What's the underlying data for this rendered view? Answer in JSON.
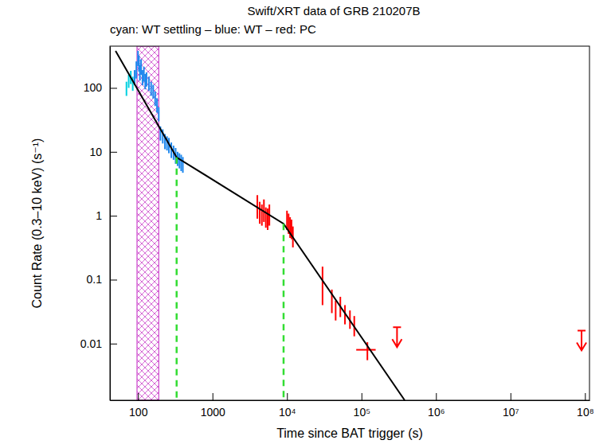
{
  "chart_data": {
    "type": "scatter",
    "title": "Swift/XRT data of GRB 210207B",
    "subtitle": "cyan: WT settling – blue: WT – red: PC",
    "x_label": "Time since BAT trigger (s)",
    "y_label": "Count Rate (0.3–10 keV) (s⁻¹)",
    "log": true,
    "grid": false,
    "xlim": [
      42,
      115000000
    ],
    "ylim": [
      0.0013,
      450
    ],
    "xticks": [
      100,
      1000,
      {
        "value": 10000,
        "label": "10⁴"
      },
      {
        "value": 100000,
        "label": "10⁵"
      },
      {
        "value": 1000000,
        "label": "10⁶"
      },
      {
        "value": 10000000,
        "label": "10⁷"
      },
      {
        "value": 100000000,
        "label": "10⁸"
      }
    ],
    "yticks": [
      0.01,
      0.1,
      1,
      10,
      100
    ],
    "series": [
      {
        "name": "WT settling",
        "color": "#00d0e0",
        "marker": "errorbar",
        "x": [
          70,
          75,
          80,
          85
        ],
        "values": [
          100,
          130,
          150,
          120
        ],
        "errors": [
          25,
          30,
          35,
          30
        ]
      },
      {
        "name": "WT",
        "color": "#1e88ee",
        "marker": "errorbar",
        "x": [
          90,
          95,
          100,
          103,
          106,
          110,
          115,
          120,
          125,
          130,
          140,
          150,
          160,
          170,
          180,
          190,
          200,
          215,
          230,
          245,
          260,
          280,
          300,
          320,
          340,
          360,
          380,
          400
        ],
        "values": [
          150,
          200,
          300,
          250,
          180,
          220,
          150,
          170,
          130,
          140,
          120,
          100,
          90,
          70,
          55,
          40,
          20,
          18,
          15,
          14,
          13,
          11,
          10,
          9,
          8,
          7.5,
          7,
          6.5
        ],
        "errors": [
          40,
          60,
          80,
          70,
          50,
          60,
          40,
          45,
          35,
          35,
          30,
          25,
          22,
          18,
          14,
          10,
          5,
          4.5,
          4,
          3.5,
          3.5,
          3,
          2.5,
          2.5,
          2,
          2,
          2,
          1.8
        ]
      },
      {
        "name": "PC",
        "color": "#ff0000",
        "marker": "errorbar",
        "x": [
          4000,
          4300,
          4600,
          4900,
          5200,
          5500,
          5800,
          10000,
          10500,
          11000,
          11500,
          12000,
          30000,
          40000,
          45000,
          52000,
          60000,
          70000,
          80000,
          120000
        ],
        "values": [
          1.5,
          1.2,
          1.1,
          1.3,
          1.0,
          0.95,
          1.1,
          0.9,
          0.8,
          0.7,
          0.65,
          0.5,
          0.1,
          0.05,
          0.035,
          0.04,
          0.03,
          0.025,
          0.02,
          0.008
        ],
        "errors": [
          0.6,
          0.45,
          0.4,
          0.5,
          0.35,
          0.35,
          0.4,
          0.3,
          0.28,
          0.25,
          0.22,
          0.18,
          0.06,
          0.02,
          0.012,
          0.014,
          0.01,
          0.008,
          0.007,
          0.0025
        ],
        "x_errors": [
          null,
          null,
          null,
          null,
          null,
          null,
          null,
          null,
          null,
          null,
          null,
          null,
          null,
          null,
          null,
          null,
          null,
          null,
          null,
          35000
        ]
      }
    ],
    "upper_limits": {
      "color": "#ff0000",
      "marker": "arrow",
      "x": [
        300000,
        90000000
      ],
      "values": [
        0.018,
        0.016
      ]
    },
    "model": {
      "color": "#000000",
      "line_style": "solid",
      "x": [
        50,
        330,
        9000,
        380000
      ],
      "values": [
        380,
        8.2,
        0.75,
        0.0013
      ]
    },
    "breaks": {
      "color": "#33dd33",
      "line_style": "dashed",
      "x": [
        330,
        9000
      ],
      "values": [
        8.2,
        0.75
      ]
    },
    "shaded_interval": {
      "color": "#cc44cc",
      "x": [
        97,
        190
      ]
    }
  }
}
